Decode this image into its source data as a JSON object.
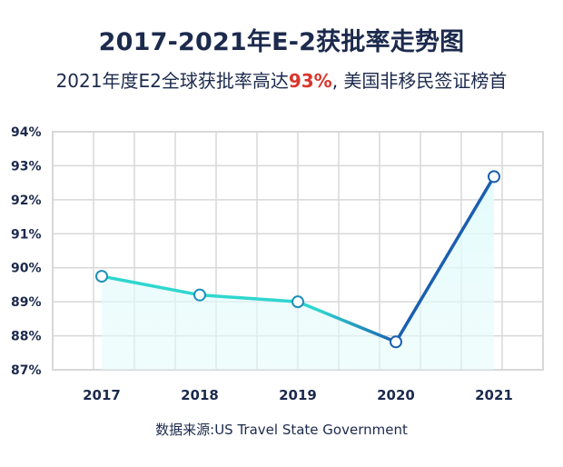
{
  "header": {
    "title": "2017-2021年E-2获批率走势图",
    "subtitle_prefix": "2021年度E2全球获批率高达",
    "subtitle_highlight": "93%",
    "subtitle_suffix": ", 美国非移民签证榜首"
  },
  "source": "数据来源:US Travel State Government",
  "colors": {
    "title": "#1c2a4d",
    "highlight": "#d9362b",
    "line_start": "#2fd6cf",
    "line_end": "#1a5fb0",
    "grid": "#d8d8d8",
    "area": "#e3fbfb"
  },
  "chart_data": {
    "type": "line",
    "x": [
      "2017",
      "2018",
      "2019",
      "2020",
      "2021"
    ],
    "series": [
      {
        "values": [
          89.75,
          89.2,
          89.0,
          87.82,
          92.68
        ]
      }
    ],
    "yticks": [
      "87%",
      "88%",
      "89%",
      "90%",
      "91%",
      "92%",
      "93%",
      "94%"
    ],
    "ylim": [
      87,
      94
    ],
    "grid": true,
    "xlabel": "",
    "ylabel": ""
  }
}
